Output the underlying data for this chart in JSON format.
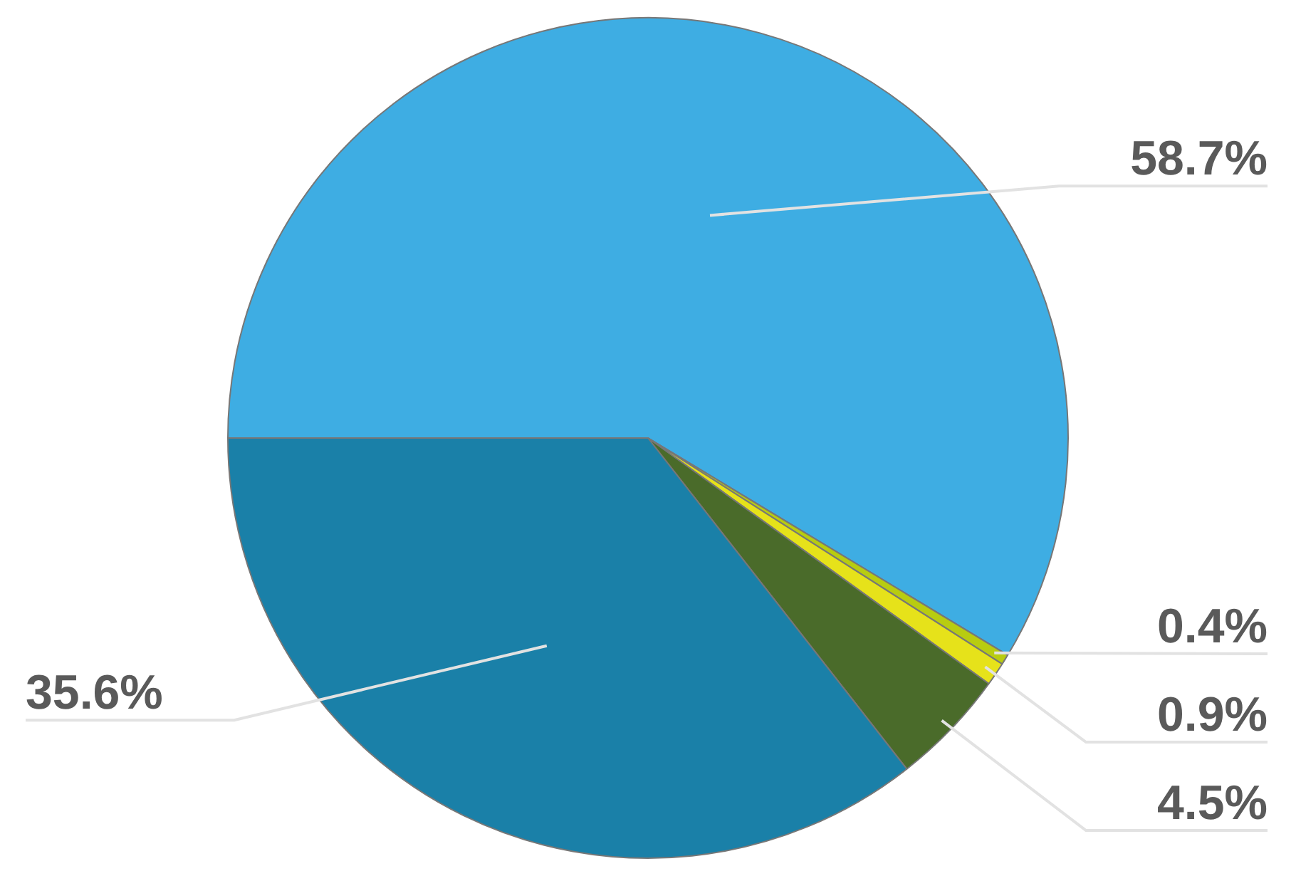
{
  "chart_data": {
    "type": "pie",
    "categories": [
      null,
      null,
      null,
      null,
      null
    ],
    "values": [
      58.7,
      0.4,
      0.9,
      4.5,
      35.6
    ],
    "colors": [
      "#3eade3",
      "#b8cc10",
      "#e6e21a",
      "#4a6b2a",
      "#1a80a8"
    ],
    "value_labels": [
      "58.7%",
      "0.4%",
      "0.9%",
      "4.5%",
      "35.6%"
    ],
    "legend": false
  }
}
